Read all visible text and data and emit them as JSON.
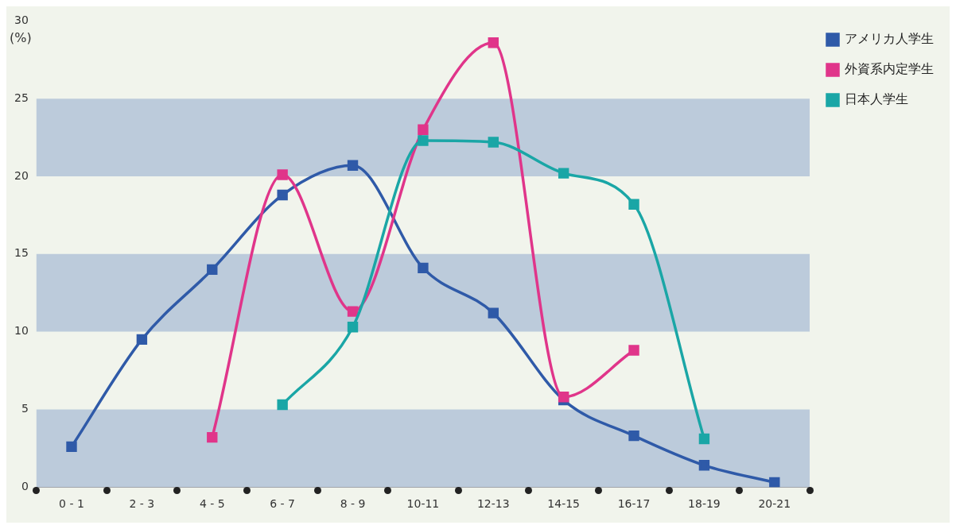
{
  "chart_data": {
    "type": "line",
    "ylabel": "(%)",
    "categories": [
      "0 - 1",
      "2 - 3",
      "4 - 5",
      "6 - 7",
      "8 - 9",
      "10-11",
      "12-13",
      "14-15",
      "16-17",
      "18-19",
      "20-21"
    ],
    "series": [
      {
        "name": "アメリカ人学生",
        "color": "#2f5aa8",
        "values": [
          2.6,
          9.5,
          14,
          18.8,
          20.7,
          14.1,
          11.2,
          5.6,
          3.3,
          1.4,
          0.3
        ]
      },
      {
        "name": "外資系内定学生",
        "color": "#e0358a",
        "values": [
          null,
          null,
          3.2,
          20.1,
          11.3,
          23,
          28.6,
          5.8,
          8.8,
          null,
          null
        ]
      },
      {
        "name": "日本人学生",
        "color": "#1aa6a6",
        "values": [
          null,
          null,
          null,
          5.3,
          10.3,
          22.3,
          22.2,
          20.2,
          18.2,
          3.1,
          null
        ]
      }
    ],
    "ylim": [
      0,
      30
    ],
    "yticks": [
      0,
      5,
      10,
      15,
      20,
      25,
      30
    ],
    "bands": [
      {
        "axis": "y",
        "from": 0,
        "to": 5,
        "color": "#bccbdb"
      },
      {
        "axis": "y",
        "from": 10,
        "to": 15,
        "color": "#bccbdb"
      },
      {
        "axis": "y",
        "from": 20,
        "to": 25,
        "color": "#bccbdb"
      }
    ],
    "grid": false,
    "legend": "right",
    "marker": "square",
    "line_style": "solid"
  }
}
